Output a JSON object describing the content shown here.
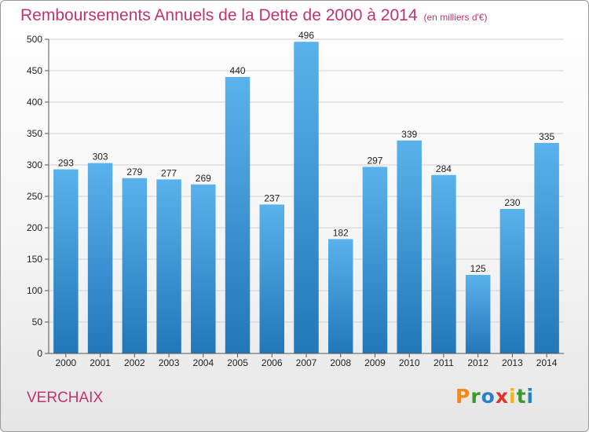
{
  "title": "Remboursements Annuels de la Dette de 2000 à 2014",
  "subtitle": "(en milliers d'€)",
  "place": "VERCHAIX",
  "logo": "Proxiti",
  "colors": {
    "title": "#c2336e",
    "bar_top": "#5ab2ec",
    "bar_bottom": "#2277b8"
  },
  "chart_data": {
    "type": "bar",
    "title": "Remboursements Annuels de la Dette de 2000 à 2014",
    "subtitle": "(en milliers d'€)",
    "categories": [
      "2000",
      "2001",
      "2002",
      "2003",
      "2004",
      "2005",
      "2006",
      "2007",
      "2008",
      "2009",
      "2010",
      "2011",
      "2012",
      "2013",
      "2014"
    ],
    "values": [
      293,
      303,
      279,
      277,
      269,
      440,
      237,
      496,
      182,
      297,
      339,
      284,
      125,
      230,
      335
    ],
    "ylim": [
      0,
      500
    ],
    "yticks": [
      0,
      50,
      100,
      150,
      200,
      250,
      300,
      350,
      400,
      450,
      500
    ],
    "xlabel": "",
    "ylabel": "",
    "grid": true,
    "legend": "none"
  }
}
